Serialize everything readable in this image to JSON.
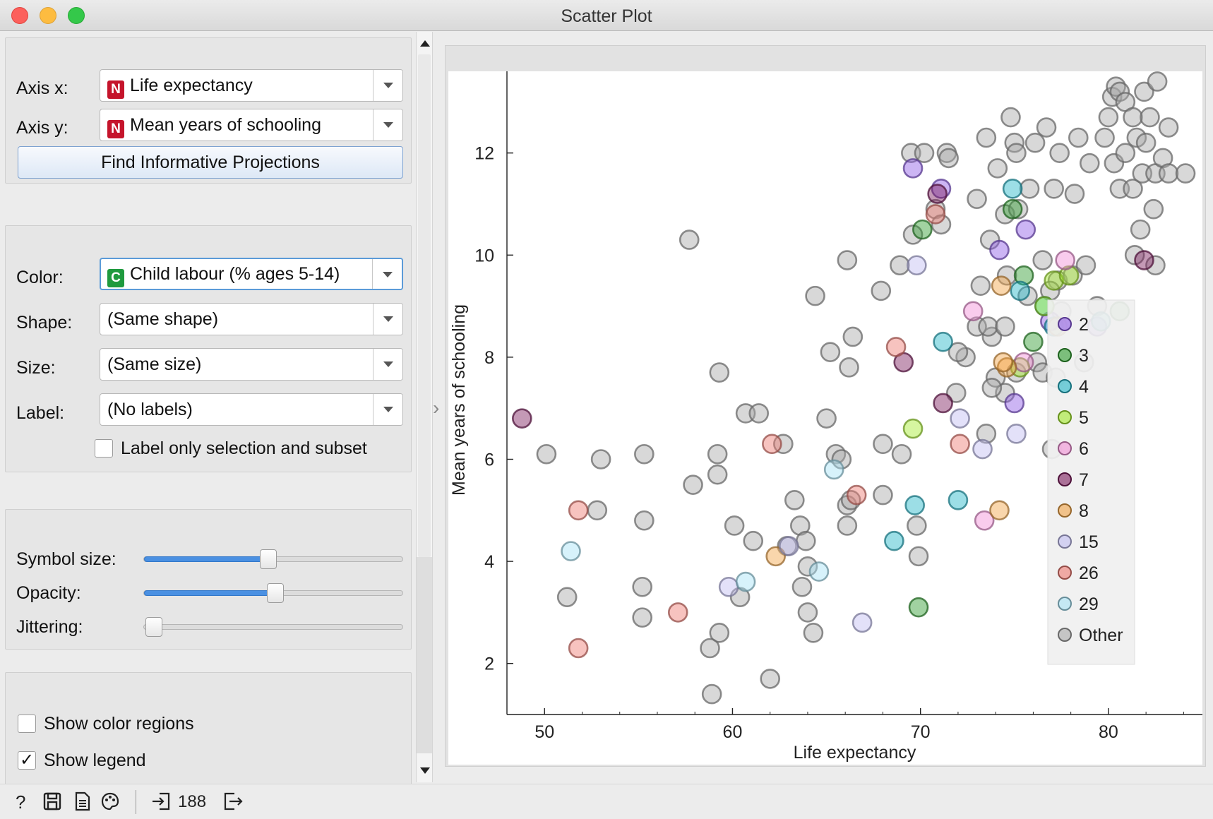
{
  "window": {
    "title": "Scatter Plot"
  },
  "axes_box": {
    "axis_x_label": "Axis x:",
    "axis_x_value": "Life expectancy",
    "axis_x_badge": "N",
    "axis_y_label": "Axis y:",
    "axis_y_value": "Mean years of schooling",
    "axis_y_badge": "N",
    "find_button": "Find Informative Projections"
  },
  "attributes_box": {
    "color_label": "Color:",
    "color_value": "Child labour  (% ages 5-14)",
    "color_badge": "C",
    "shape_label": "Shape:",
    "shape_value": "(Same shape)",
    "size_label": "Size:",
    "size_value": "(Same size)",
    "label_label": "Label:",
    "label_value": "(No labels)",
    "label_only_text": "Label only selection and subset",
    "label_only_checked": false
  },
  "sliders_box": {
    "symbol_size_label": "Symbol size:",
    "symbol_size_level": 0.47,
    "opacity_label": "Opacity:",
    "opacity_level": 0.5,
    "jittering_label": "Jittering:",
    "jittering_level": 0.0
  },
  "options_box": {
    "color_regions_text": "Show color regions",
    "color_regions_checked": false,
    "show_legend_text": "Show legend",
    "show_legend_checked": true,
    "check_mark": "✓"
  },
  "status_bar": {
    "help_icon": "question-icon",
    "save_icon": "save-icon",
    "report_icon": "report-icon",
    "palette_icon": "palette-icon",
    "input_icon": "input-icon",
    "input_count": "188",
    "output_icon": "output-icon"
  },
  "chart_data": {
    "type": "scatter",
    "xlabel": "Life expectancy",
    "ylabel": "Mean years of schooling",
    "xlim": [
      48,
      85
    ],
    "ylim": [
      1,
      13.6
    ],
    "x_ticks": [
      50,
      60,
      70,
      80
    ],
    "y_ticks": [
      2,
      4,
      6,
      8,
      10,
      12
    ],
    "grid": false,
    "legend_position": "right",
    "legend": [
      {
        "label": "2",
        "color": "#8d5ae6"
      },
      {
        "label": "3",
        "color": "#2e9c2e"
      },
      {
        "label": "4",
        "color": "#23b5c8"
      },
      {
        "label": "5",
        "color": "#a4ea2c"
      },
      {
        "label": "6",
        "color": "#f28fd6"
      },
      {
        "label": "7",
        "color": "#7d1c5e"
      },
      {
        "label": "8",
        "color": "#f2a446"
      },
      {
        "label": "15",
        "color": "#c0bdf1"
      },
      {
        "label": "26",
        "color": "#ee7a72"
      },
      {
        "label": "29",
        "color": "#a6e3f6"
      },
      {
        "label": "Other",
        "color": "#a8a8a8"
      }
    ],
    "series": [
      {
        "name": "2",
        "points": [
          [
            69.6,
            11.7
          ],
          [
            71.1,
            11.3
          ],
          [
            74.2,
            10.1
          ],
          [
            75.6,
            10.5
          ],
          [
            76.9,
            8.7
          ],
          [
            79.4,
            8.6
          ],
          [
            75.0,
            7.1
          ]
        ]
      },
      {
        "name": "3",
        "points": [
          [
            70.1,
            10.5
          ],
          [
            74.9,
            10.9
          ],
          [
            75.5,
            9.6
          ],
          [
            76.0,
            8.3
          ],
          [
            80.6,
            8.9
          ],
          [
            69.9,
            3.1
          ]
        ]
      },
      {
        "name": "4",
        "points": [
          [
            74.9,
            11.3
          ],
          [
            75.3,
            9.3
          ],
          [
            76.6,
            9.0
          ],
          [
            77.1,
            8.6
          ],
          [
            79.6,
            8.7
          ],
          [
            71.2,
            8.3
          ],
          [
            69.7,
            5.1
          ],
          [
            72.0,
            5.2
          ],
          [
            68.6,
            4.4
          ]
        ]
      },
      {
        "name": "5",
        "points": [
          [
            77.1,
            9.5
          ],
          [
            76.6,
            9.0
          ],
          [
            77.9,
            9.6
          ],
          [
            75.3,
            7.8
          ],
          [
            69.6,
            6.6
          ]
        ]
      },
      {
        "name": "6",
        "points": [
          [
            77.7,
            9.9
          ],
          [
            72.8,
            8.9
          ],
          [
            75.5,
            7.9
          ],
          [
            73.4,
            4.8
          ]
        ]
      },
      {
        "name": "7",
        "points": [
          [
            70.9,
            11.2
          ],
          [
            81.9,
            9.9
          ],
          [
            69.1,
            7.9
          ],
          [
            71.2,
            7.1
          ],
          [
            48.8,
            6.8
          ]
        ]
      },
      {
        "name": "8",
        "points": [
          [
            74.3,
            9.4
          ],
          [
            77.3,
            8.6
          ],
          [
            74.6,
            7.8
          ],
          [
            74.4,
            7.9
          ],
          [
            62.3,
            4.1
          ],
          [
            74.2,
            5.0
          ]
        ]
      },
      {
        "name": "15",
        "points": [
          [
            69.8,
            9.8
          ],
          [
            72.1,
            6.8
          ],
          [
            75.1,
            6.5
          ],
          [
            73.3,
            6.2
          ],
          [
            63.0,
            4.3
          ],
          [
            59.8,
            3.5
          ],
          [
            66.9,
            2.8
          ]
        ]
      },
      {
        "name": "26",
        "points": [
          [
            70.8,
            10.8
          ],
          [
            68.7,
            8.2
          ],
          [
            72.1,
            6.3
          ],
          [
            62.1,
            6.3
          ],
          [
            66.6,
            5.3
          ],
          [
            51.8,
            5.0
          ],
          [
            57.1,
            3.0
          ],
          [
            51.8,
            2.3
          ]
        ]
      },
      {
        "name": "29",
        "points": [
          [
            65.4,
            5.8
          ],
          [
            51.4,
            4.2
          ],
          [
            60.7,
            3.6
          ],
          [
            64.6,
            3.8
          ]
        ]
      },
      {
        "name": "Other",
        "points": [
          [
            69.5,
            12.0
          ],
          [
            70.2,
            12.0
          ],
          [
            71.4,
            12.0
          ],
          [
            71.5,
            11.9
          ],
          [
            73.5,
            12.3
          ],
          [
            74.8,
            12.7
          ],
          [
            75.0,
            12.2
          ],
          [
            75.1,
            12.0
          ],
          [
            76.1,
            12.2
          ],
          [
            76.7,
            12.5
          ],
          [
            77.4,
            12.0
          ],
          [
            78.4,
            12.3
          ],
          [
            79.0,
            11.8
          ],
          [
            79.8,
            12.3
          ],
          [
            80.0,
            12.7
          ],
          [
            80.2,
            13.1
          ],
          [
            80.4,
            13.3
          ],
          [
            80.6,
            13.2
          ],
          [
            80.9,
            13.0
          ],
          [
            81.3,
            12.7
          ],
          [
            81.5,
            12.3
          ],
          [
            81.9,
            13.2
          ],
          [
            82.2,
            12.7
          ],
          [
            82.6,
            13.4
          ],
          [
            83.2,
            12.5
          ],
          [
            80.3,
            11.8
          ],
          [
            80.6,
            11.3
          ],
          [
            80.9,
            12.0
          ],
          [
            81.3,
            11.3
          ],
          [
            81.8,
            11.6
          ],
          [
            82.0,
            12.2
          ],
          [
            82.5,
            11.6
          ],
          [
            82.9,
            11.9
          ],
          [
            83.2,
            11.6
          ],
          [
            84.1,
            11.6
          ],
          [
            82.4,
            10.9
          ],
          [
            81.7,
            10.5
          ],
          [
            81.4,
            10.0
          ],
          [
            82.5,
            9.8
          ],
          [
            73.0,
            11.1
          ],
          [
            74.1,
            11.7
          ],
          [
            74.5,
            10.8
          ],
          [
            75.2,
            10.9
          ],
          [
            75.8,
            11.3
          ],
          [
            77.1,
            11.3
          ],
          [
            78.2,
            11.2
          ],
          [
            73.7,
            10.3
          ],
          [
            76.5,
            9.9
          ],
          [
            77.3,
            9.5
          ],
          [
            78.1,
            9.6
          ],
          [
            78.8,
            9.8
          ],
          [
            79.4,
            9.0
          ],
          [
            73.2,
            9.4
          ],
          [
            74.6,
            9.6
          ],
          [
            75.7,
            9.2
          ],
          [
            76.9,
            9.3
          ],
          [
            77.5,
            8.9
          ],
          [
            78.7,
            7.9
          ],
          [
            73.8,
            8.4
          ],
          [
            73.0,
            8.6
          ],
          [
            73.6,
            8.6
          ],
          [
            74.5,
            8.6
          ],
          [
            75.1,
            7.7
          ],
          [
            76.2,
            7.9
          ],
          [
            76.5,
            7.7
          ],
          [
            77.2,
            7.6
          ],
          [
            74.0,
            7.6
          ],
          [
            74.5,
            7.3
          ],
          [
            72.4,
            8.0
          ],
          [
            73.8,
            7.4
          ],
          [
            71.9,
            7.3
          ],
          [
            72.0,
            8.1
          ],
          [
            73.5,
            6.5
          ],
          [
            77.0,
            6.2
          ],
          [
            70.8,
            10.9
          ],
          [
            69.6,
            10.4
          ],
          [
            71.1,
            10.6
          ],
          [
            68.9,
            9.8
          ],
          [
            67.9,
            9.3
          ],
          [
            66.1,
            9.9
          ],
          [
            64.4,
            9.2
          ],
          [
            66.4,
            8.4
          ],
          [
            65.2,
            8.1
          ],
          [
            66.2,
            7.8
          ],
          [
            65.5,
            6.1
          ],
          [
            65.8,
            6.0
          ],
          [
            65.0,
            6.8
          ],
          [
            68.0,
            6.3
          ],
          [
            69.0,
            6.1
          ],
          [
            57.7,
            10.3
          ],
          [
            59.3,
            7.7
          ],
          [
            60.7,
            6.9
          ],
          [
            61.4,
            6.9
          ],
          [
            59.2,
            6.1
          ],
          [
            59.2,
            5.7
          ],
          [
            62.7,
            6.3
          ],
          [
            50.1,
            6.1
          ],
          [
            53.0,
            6.0
          ],
          [
            55.3,
            6.1
          ],
          [
            57.9,
            5.5
          ],
          [
            52.8,
            5.0
          ],
          [
            55.3,
            4.8
          ],
          [
            60.1,
            4.7
          ],
          [
            61.1,
            4.4
          ],
          [
            62.9,
            4.3
          ],
          [
            63.3,
            5.2
          ],
          [
            63.6,
            4.7
          ],
          [
            63.9,
            4.4
          ],
          [
            66.1,
            5.1
          ],
          [
            66.1,
            4.7
          ],
          [
            68.0,
            5.3
          ],
          [
            69.8,
            4.7
          ],
          [
            69.9,
            4.1
          ],
          [
            66.3,
            5.2
          ],
          [
            64.0,
            3.9
          ],
          [
            63.7,
            3.5
          ],
          [
            64.0,
            3.0
          ],
          [
            64.3,
            2.6
          ],
          [
            60.4,
            3.3
          ],
          [
            55.2,
            3.5
          ],
          [
            55.2,
            2.9
          ],
          [
            51.2,
            3.3
          ],
          [
            59.3,
            2.6
          ],
          [
            58.8,
            2.3
          ],
          [
            62.0,
            1.7
          ],
          [
            58.9,
            1.4
          ]
        ]
      }
    ]
  }
}
